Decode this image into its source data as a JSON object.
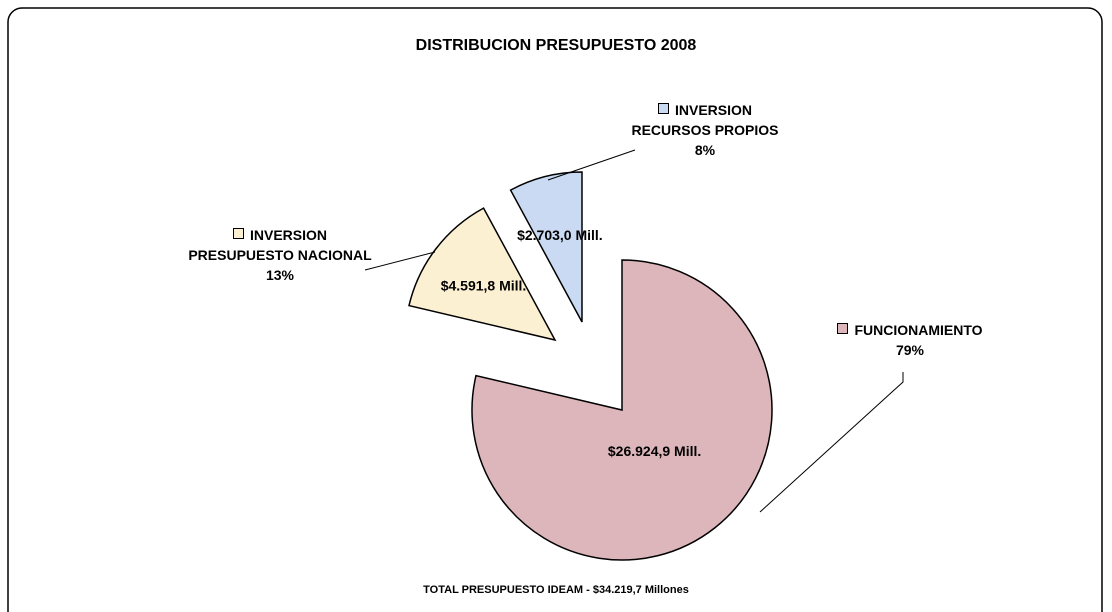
{
  "chart_data": {
    "type": "pie",
    "title": "DISTRIBUCION PRESUPUESTO 2008",
    "categories": [
      "FUNCIONAMIENTO",
      "INVERSION PRESUPUESTO NACIONAL",
      "INVERSION RECURSOS PROPIOS"
    ],
    "values": [
      26924.9,
      4591.8,
      2703.0
    ],
    "value_labels": [
      "$26.924,9 Mill.",
      "$4.591,8 Mill.",
      "$2.703,0 Mill."
    ],
    "percent_labels": [
      "79%",
      "13%",
      "8%"
    ],
    "colors": [
      "#dcb6bb",
      "#fcf0d2",
      "#c9daf2"
    ],
    "footnote": "TOTAL PRESUPUESTO IDEAM - $34.219,7 Millones"
  }
}
